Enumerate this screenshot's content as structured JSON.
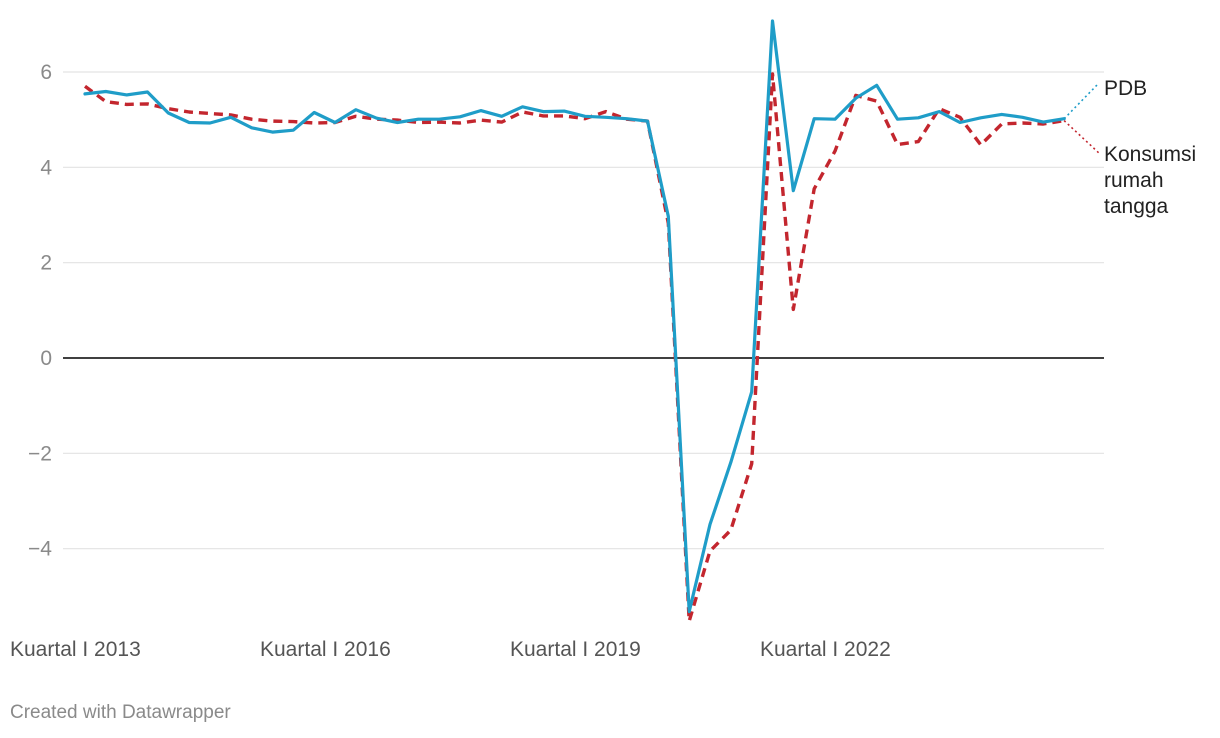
{
  "chart_data": {
    "type": "line",
    "title": "",
    "xlabel": "",
    "ylabel": "",
    "ylim": [
      -5.5,
      7.1
    ],
    "yticks": [
      -4,
      -2,
      0,
      2,
      4,
      6
    ],
    "ytick_labels": [
      "−4",
      "−2",
      "0",
      "2",
      "4",
      "6"
    ],
    "grid": true,
    "x": [
      "2013Q1",
      "2013Q2",
      "2013Q3",
      "2013Q4",
      "2014Q1",
      "2014Q2",
      "2014Q3",
      "2014Q4",
      "2015Q1",
      "2015Q2",
      "2015Q3",
      "2015Q4",
      "2016Q1",
      "2016Q2",
      "2016Q3",
      "2016Q4",
      "2017Q1",
      "2017Q2",
      "2017Q3",
      "2017Q4",
      "2018Q1",
      "2018Q2",
      "2018Q3",
      "2018Q4",
      "2019Q1",
      "2019Q2",
      "2019Q3",
      "2019Q4",
      "2020Q1",
      "2020Q2",
      "2020Q3",
      "2020Q4",
      "2021Q1",
      "2021Q2",
      "2021Q3",
      "2021Q4",
      "2022Q1",
      "2022Q2",
      "2022Q3",
      "2022Q4",
      "2023Q1",
      "2023Q2",
      "2023Q3",
      "2023Q4",
      "2024Q1",
      "2024Q2",
      "2024Q3",
      "2024Q4",
      "2025Q1"
    ],
    "xtick_labels": [
      {
        "at": "2013Q1",
        "label": "Kuartal I 2013"
      },
      {
        "at": "2016Q1",
        "label": "Kuartal I 2016"
      },
      {
        "at": "2019Q1",
        "label": "Kuartal I 2019"
      },
      {
        "at": "2022Q1",
        "label": "Kuartal I 2022"
      }
    ],
    "series": [
      {
        "name": "PDB",
        "color": "#1f9dc8",
        "style": "solid",
        "values": [
          5.54,
          5.59,
          5.52,
          5.58,
          5.14,
          4.94,
          4.93,
          5.05,
          4.83,
          4.74,
          4.78,
          5.15,
          4.94,
          5.21,
          5.03,
          4.94,
          5.01,
          5.01,
          5.06,
          5.19,
          5.07,
          5.27,
          5.17,
          5.18,
          5.07,
          5.05,
          5.02,
          4.97,
          2.97,
          -5.32,
          -3.49,
          -2.19,
          -0.71,
          7.07,
          3.51,
          5.02,
          5.01,
          5.45,
          5.72,
          5.01,
          5.04,
          5.17,
          4.94,
          5.04,
          5.11,
          5.05,
          4.95,
          5.02,
          4.87
        ]
      },
      {
        "name": "Konsumsi rumah tangga",
        "color": "#c3262e",
        "style": "dashed",
        "values": [
          5.7,
          5.38,
          5.32,
          5.33,
          5.23,
          5.16,
          5.13,
          5.1,
          5.01,
          4.97,
          4.96,
          4.93,
          4.94,
          5.07,
          5.01,
          4.99,
          4.94,
          4.95,
          4.93,
          4.99,
          4.95,
          5.16,
          5.08,
          5.08,
          5.02,
          5.17,
          5.01,
          4.97,
          2.83,
          -5.52,
          -4.05,
          -3.61,
          -2.22,
          5.96,
          1.02,
          3.55,
          4.34,
          5.51,
          5.39,
          4.48,
          4.54,
          5.23,
          5.05,
          4.47,
          4.91,
          4.93,
          4.91,
          4.98,
          4.89
        ]
      }
    ],
    "series_labels": [
      {
        "name": "PDB",
        "lines": [
          "PDB"
        ]
      },
      {
        "name": "Konsumsi rumah tangga",
        "lines": [
          "Konsumsi",
          "rumah",
          "tangga"
        ]
      }
    ],
    "credit": "Created with Datawrapper"
  }
}
